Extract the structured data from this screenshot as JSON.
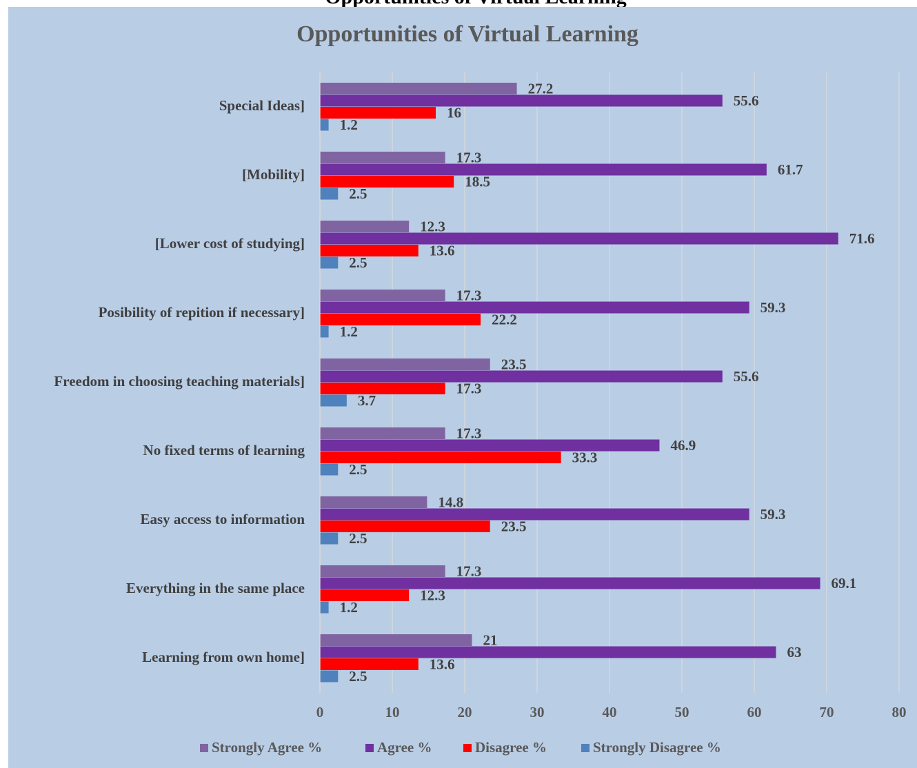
{
  "caption": "Opportunities of Virtual Learning",
  "chart_data": {
    "type": "hbar",
    "title": "Opportunities of Virtual Learning",
    "categories": [
      "Special Ideas]",
      "[Mobility]",
      "[Lower cost of studying]",
      "Posibility of repition if necessary]",
      "Freedom in choosing teaching materials]",
      "No fixed terms of learning",
      "Easy access to information",
      "Everything in the same place",
      "Learning from own home]"
    ],
    "series": [
      {
        "name": "Strongly Agree %",
        "color": "#8064a2",
        "values": [
          27.2,
          17.3,
          12.3,
          17.3,
          23.5,
          17.3,
          14.8,
          17.3,
          21
        ]
      },
      {
        "name": "Agree %",
        "color": "#7030a0",
        "values": [
          55.6,
          61.7,
          71.6,
          59.3,
          55.6,
          46.9,
          59.3,
          69.1,
          63
        ]
      },
      {
        "name": "Disagree %",
        "color": "#ff0000",
        "values": [
          16,
          18.5,
          13.6,
          22.2,
          17.3,
          33.3,
          23.5,
          12.3,
          13.6
        ]
      },
      {
        "name": "Strongly Disagree %",
        "color": "#4f81bd",
        "values": [
          1.2,
          2.5,
          2.5,
          1.2,
          3.7,
          2.5,
          2.5,
          1.2,
          2.5
        ]
      }
    ],
    "xlim": [
      0,
      80
    ],
    "xticks": [
      0,
      10,
      20,
      30,
      40,
      50,
      60,
      70,
      80
    ],
    "grid": true,
    "legend": "bottom"
  }
}
